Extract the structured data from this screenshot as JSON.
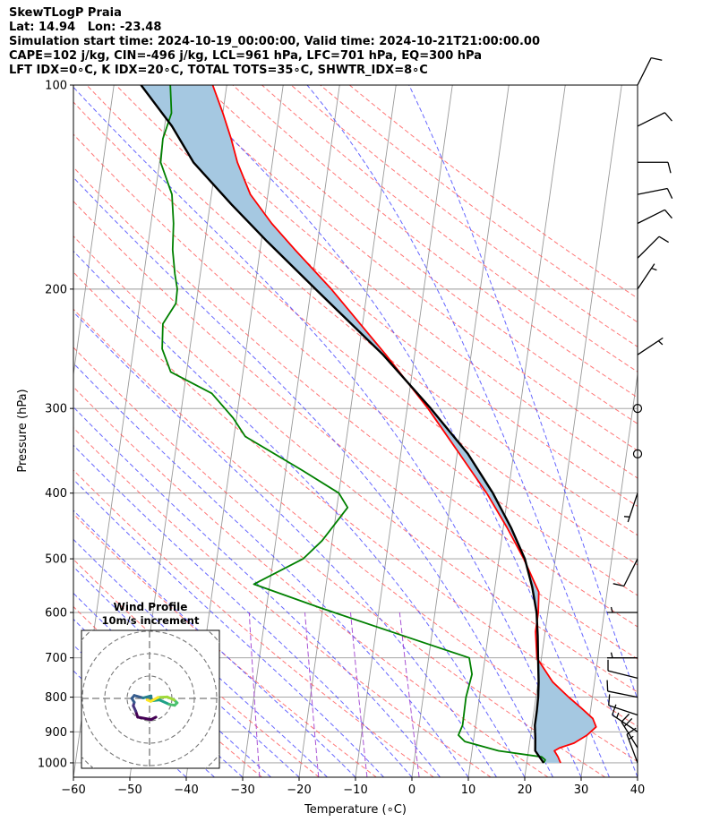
{
  "header": {
    "line1": "SkewTLogP Praia",
    "line2": "Lat: 14.94   Lon: -23.48",
    "line3": "Simulation start time: 2024-10-19_00:00:00, Valid time: 2024-10-21T21:00:00.00",
    "line4": "CAPE=102 j/kg, CIN=-496 j/kg, LCL=961 hPa, LFC=701 hPa, EQ=300 hPa",
    "line5": "LFT IDX=0∘C, K IDX=20∘C, TOTAL TOTS=35∘C, SHWTR_IDX=8∘C"
  },
  "chart_data": {
    "type": "line",
    "skew": "skew-T log-p",
    "xlabel": "Temperature (∘C)",
    "ylabel": "Pressure (hPa)",
    "xlim": [
      -60,
      40
    ],
    "ylim": [
      1050,
      100
    ],
    "yscale": "log",
    "x_ticks": [
      -60,
      -50,
      -40,
      -30,
      -20,
      -10,
      0,
      10,
      20,
      30,
      40
    ],
    "x_tick_labels": [
      "−60",
      "−50",
      "−40",
      "−30",
      "−20",
      "−10",
      "0",
      "10",
      "20",
      "30",
      "40"
    ],
    "y_ticks": [
      1000,
      900,
      800,
      700,
      600,
      500,
      400,
      300,
      200,
      100
    ],
    "y_tick_labels": [
      "1000",
      "900",
      "800",
      "700",
      "600",
      "500",
      "400",
      "300",
      "200",
      "100"
    ],
    "grid": true,
    "colors": {
      "temperature": "#ff0000",
      "dewpoint": "#008000",
      "parcel": "#000000",
      "cape_fill": "#a5c8e1",
      "dry_adiabats": "#ff5555",
      "moist_adiabats": "#4040ff",
      "mixing_ratio": "#9933cc",
      "isotherms": "#999999"
    },
    "series": [
      {
        "name": "",
        "key": "temperature",
        "points": [
          [
            1000,
            26
          ],
          [
            990,
            25.7
          ],
          [
            980,
            25.4
          ],
          [
            960,
            24.6
          ],
          [
            950,
            25.5
          ],
          [
            935,
            27.9
          ],
          [
            910,
            30.0
          ],
          [
            885,
            31.4
          ],
          [
            860,
            30.6
          ],
          [
            830,
            28.3
          ],
          [
            800,
            25.8
          ],
          [
            760,
            22.6
          ],
          [
            700,
            19.2
          ],
          [
            640,
            18.3
          ],
          [
            600,
            18.3
          ],
          [
            560,
            17.9
          ],
          [
            500,
            14.4
          ],
          [
            450,
            10.7
          ],
          [
            400,
            6.2
          ],
          [
            350,
            0.4
          ],
          [
            300,
            -6.3
          ],
          [
            250,
            -15.1
          ],
          [
            200,
            -26.4
          ],
          [
            175,
            -33.8
          ],
          [
            160,
            -38.6
          ],
          [
            145,
            -43.1
          ],
          [
            130,
            -46.2
          ],
          [
            120,
            -47.9
          ],
          [
            110,
            -50.0
          ],
          [
            100,
            -52.5
          ]
        ]
      },
      {
        "name": "",
        "key": "dewpoint",
        "points": [
          [
            1000,
            23.0
          ],
          [
            990,
            23.2
          ],
          [
            980,
            22.5
          ],
          [
            960,
            14.7
          ],
          [
            930,
            8.5
          ],
          [
            910,
            7.2
          ],
          [
            880,
            7.7
          ],
          [
            800,
            7.6
          ],
          [
            740,
            8.1
          ],
          [
            700,
            7.2
          ],
          [
            650,
            -4.9
          ],
          [
            590,
            -20.6
          ],
          [
            545,
            -32.8
          ],
          [
            500,
            -24.7
          ],
          [
            470,
            -21.8
          ],
          [
            420,
            -18.1
          ],
          [
            400,
            -20.0
          ],
          [
            370,
            -27.1
          ],
          [
            330,
            -38.0
          ],
          [
            310,
            -40.6
          ],
          [
            285,
            -45.0
          ],
          [
            265,
            -52.8
          ],
          [
            245,
            -54.9
          ],
          [
            225,
            -55.4
          ],
          [
            210,
            -53.6
          ],
          [
            200,
            -53.7
          ],
          [
            190,
            -54.5
          ],
          [
            175,
            -55.5
          ],
          [
            160,
            -56.0
          ],
          [
            145,
            -57.0
          ],
          [
            130,
            -59.8
          ],
          [
            120,
            -60.0
          ],
          [
            110,
            -59.1
          ],
          [
            100,
            -60.0
          ]
        ]
      },
      {
        "name": "",
        "key": "parcel",
        "points": [
          [
            1000,
            23.0
          ],
          [
            960,
            21.2
          ],
          [
            920,
            20.9
          ],
          [
            880,
            20.5
          ],
          [
            840,
            20.5
          ],
          [
            800,
            20.4
          ],
          [
            760,
            20.1
          ],
          [
            700,
            19.4
          ],
          [
            650,
            18.8
          ],
          [
            600,
            18.0
          ],
          [
            550,
            16.6
          ],
          [
            500,
            14.6
          ],
          [
            450,
            11.4
          ],
          [
            400,
            7.3
          ],
          [
            350,
            1.9
          ],
          [
            300,
            -5.8
          ],
          [
            250,
            -15.6
          ],
          [
            200,
            -29.2
          ],
          [
            170,
            -39.0
          ],
          [
            150,
            -46.2
          ],
          [
            130,
            -54.0
          ],
          [
            115,
            -58.7
          ],
          [
            100,
            -65.2
          ]
        ]
      }
    ],
    "hodograph": {
      "title": "Wind Profile",
      "subtitle": "10m/s increment",
      "ring_increment_ms": 10,
      "points_ms": [
        [
          1.3,
          -3.8
        ],
        [
          0.3,
          -4.3
        ],
        [
          -2.4,
          -3.8
        ],
        [
          -2.8,
          -2.6
        ],
        [
          -3.3,
          -1.5
        ],
        [
          -3.1,
          -0.8
        ],
        [
          -3.6,
          0.0
        ],
        [
          -3.1,
          0.6
        ],
        [
          -1.3,
          0.1
        ],
        [
          0.3,
          0.5
        ],
        [
          0.3,
          -0.5
        ],
        [
          2.0,
          -0.3
        ],
        [
          4.0,
          -1.2
        ],
        [
          5.1,
          -1.4
        ],
        [
          5.6,
          -0.9
        ],
        [
          5.0,
          -0.3
        ],
        [
          3.6,
          0.3
        ],
        [
          1.7,
          0.2
        ],
        [
          0.2,
          -0.6
        ],
        [
          -0.5,
          -0.3
        ]
      ]
    },
    "wind_barbs": [
      {
        "p": 1000,
        "u_ms": 3,
        "v_ms": -8
      },
      {
        "p": 950,
        "u_ms": 5,
        "v_ms": -8
      },
      {
        "p": 900,
        "u_ms": 6,
        "v_ms": -4
      },
      {
        "p": 850,
        "u_ms": 6,
        "v_ms": -2
      },
      {
        "p": 800,
        "u_ms": 5,
        "v_ms": -1
      },
      {
        "p": 750,
        "u_ms": 4,
        "v_ms": -1
      },
      {
        "p": 700,
        "u_ms": 3,
        "v_ms": 0
      },
      {
        "p": 600,
        "u_ms": 2,
        "v_ms": 0
      },
      {
        "p": 500,
        "u_ms": 2,
        "v_ms": 4
      },
      {
        "p": 400,
        "u_ms": 1,
        "v_ms": 3
      },
      {
        "p": 350,
        "u_ms": 0,
        "v_ms": 0
      },
      {
        "p": 300,
        "u_ms": 0,
        "v_ms": 0
      },
      {
        "p": 250,
        "u_ms": -3,
        "v_ms": -2
      },
      {
        "p": 200,
        "u_ms": -2,
        "v_ms": -3
      },
      {
        "p": 180,
        "u_ms": -3,
        "v_ms": -3
      },
      {
        "p": 160,
        "u_ms": -4,
        "v_ms": -2
      },
      {
        "p": 145,
        "u_ms": -5,
        "v_ms": -1
      },
      {
        "p": 130,
        "u_ms": -5,
        "v_ms": 0
      },
      {
        "p": 115,
        "u_ms": -4,
        "v_ms": -2
      },
      {
        "p": 100,
        "u_ms": -2,
        "v_ms": -4
      }
    ]
  }
}
